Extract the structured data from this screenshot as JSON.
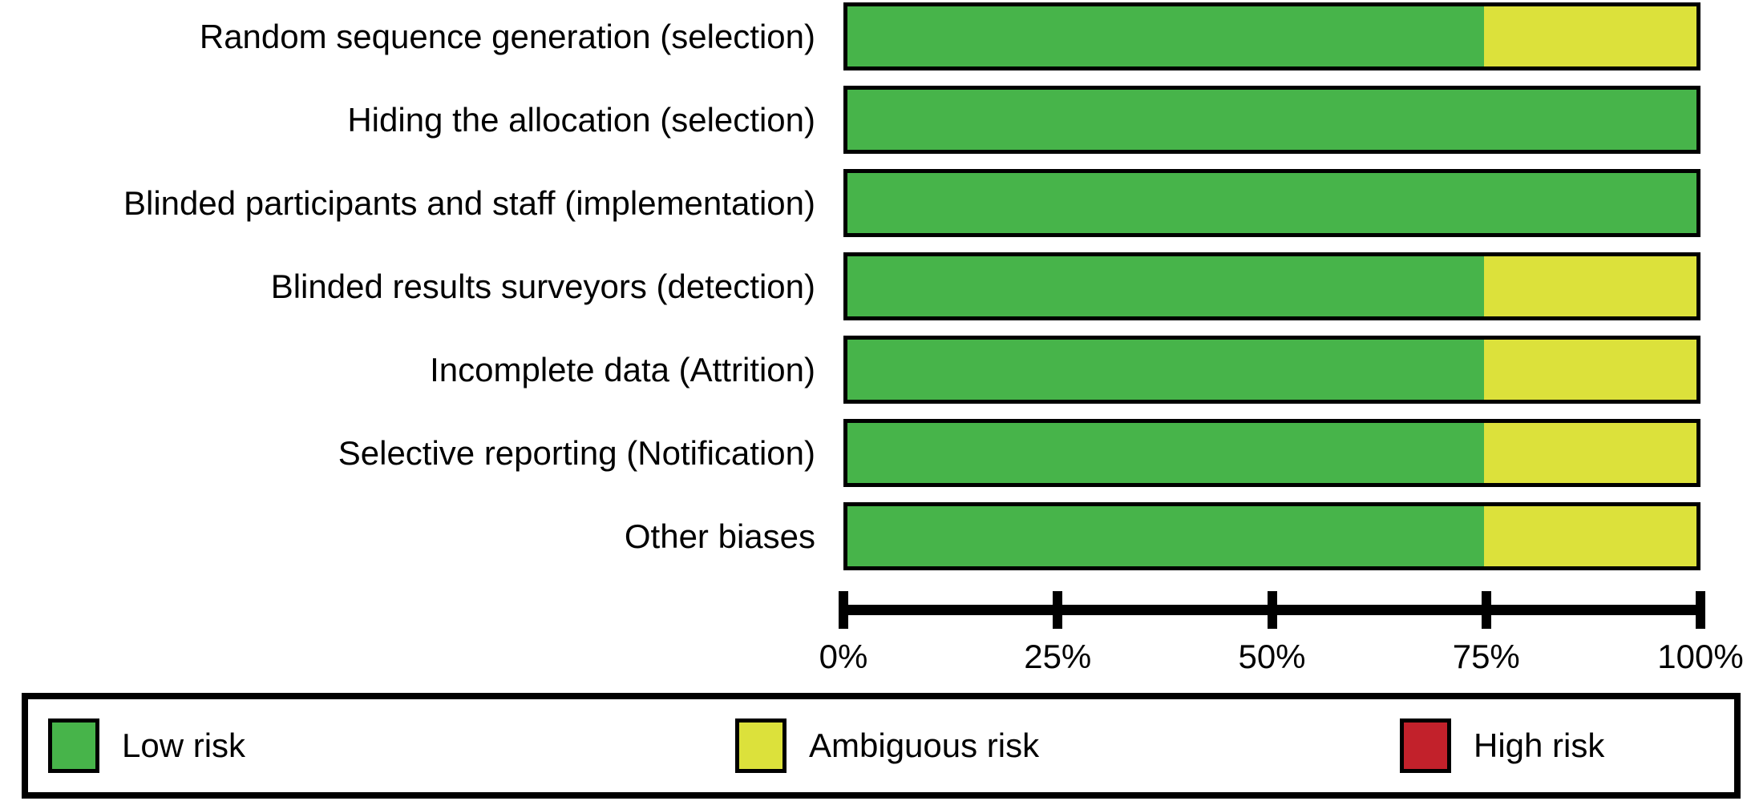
{
  "chart_data": {
    "type": "bar",
    "orientation": "horizontal",
    "stacked": true,
    "unit": "%",
    "xlim": [
      0,
      100
    ],
    "grid": false,
    "x_tick_labels": [
      "0%",
      "25%",
      "50%",
      "75%",
      "100%"
    ],
    "categories": [
      "Random sequence generation (selection)",
      "Hiding the allocation (selection)",
      "Blinded participants and staff (implementation)",
      "Blinded results surveyors (detection)",
      "Incomplete data (Attrition)",
      "Selective reporting (Notification)",
      "Other biases"
    ],
    "colors": {
      "low": "#47b44a",
      "ambiguous": "#dce13b",
      "high": "#c2212b"
    },
    "series": [
      {
        "name": "Low risk",
        "color_key": "low",
        "values": [
          75,
          100,
          100,
          75,
          75,
          75,
          75
        ]
      },
      {
        "name": "Ambiguous risk",
        "color_key": "ambiguous",
        "values": [
          25,
          0,
          0,
          25,
          25,
          25,
          25
        ]
      },
      {
        "name": "High risk",
        "color_key": "high",
        "values": [
          0,
          0,
          0,
          0,
          0,
          0,
          0
        ]
      }
    ],
    "legend_position": "bottom"
  },
  "legend": {
    "items": [
      {
        "label": "Low risk",
        "color": "#47b44a"
      },
      {
        "label": "Ambiguous risk",
        "color": "#dce13b"
      },
      {
        "label": "High risk",
        "color": "#c2212b"
      }
    ]
  }
}
